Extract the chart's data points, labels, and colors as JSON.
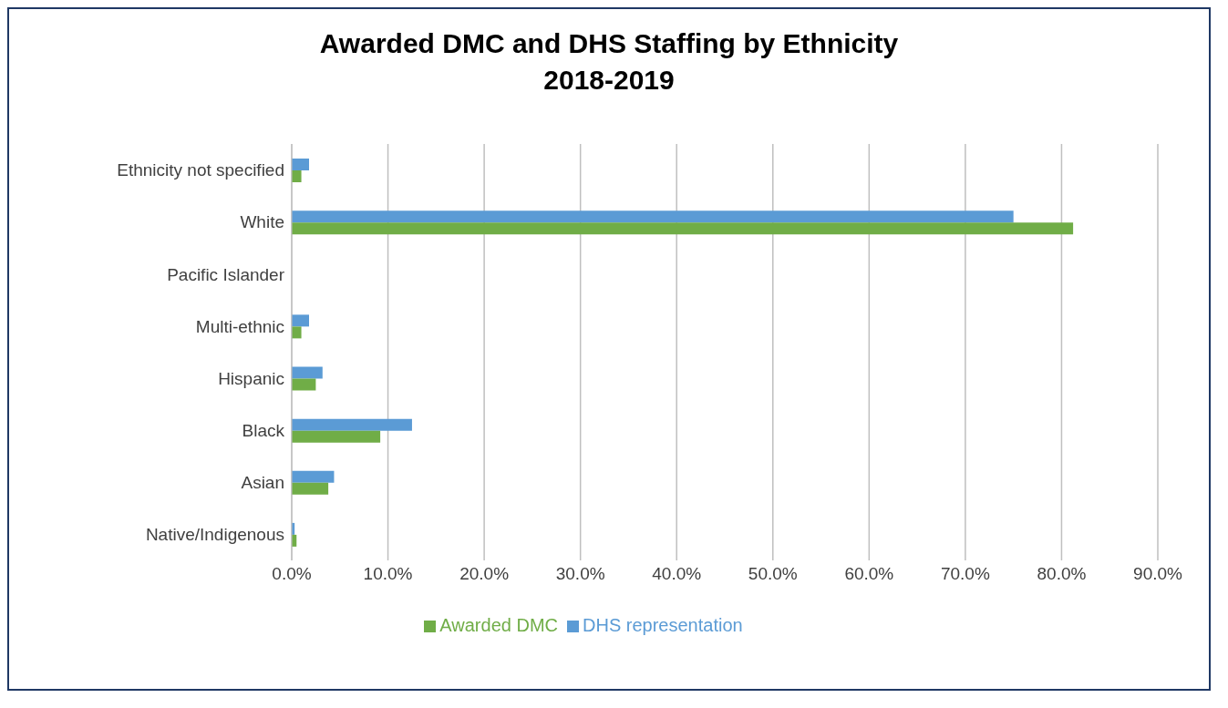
{
  "chart_data": {
    "type": "bar",
    "orientation": "horizontal",
    "title": "Awarded DMC and DHS Staffing by Ethnicity",
    "subtitle": "2018-2019",
    "categories": [
      "Ethnicity not specified",
      "White",
      "Pacific Islander",
      "Multi-ethnic",
      "Hispanic",
      "Black",
      "Asian",
      "Native/Indigenous"
    ],
    "series": [
      {
        "name": "DHS representation",
        "color": "#5b9bd5",
        "values": [
          1.8,
          75.0,
          0,
          1.8,
          3.2,
          12.5,
          4.4,
          0.3
        ]
      },
      {
        "name": "Awarded DMC",
        "color": "#70ad47",
        "values": [
          1.0,
          81.2,
          0,
          1.0,
          2.5,
          9.2,
          3.8,
          0.5
        ]
      }
    ],
    "xlim": [
      0,
      90
    ],
    "xticks": [
      {
        "value": 0,
        "label": "0.0%"
      },
      {
        "value": 10,
        "label": "10.0%"
      },
      {
        "value": 20,
        "label": "20.0%"
      },
      {
        "value": 30,
        "label": "30.0%"
      },
      {
        "value": 40,
        "label": "40.0%"
      },
      {
        "value": 50,
        "label": "50.0%"
      },
      {
        "value": 60,
        "label": "60.0%"
      },
      {
        "value": 70,
        "label": "70.0%"
      },
      {
        "value": 80,
        "label": "80.0%"
      },
      {
        "value": 90,
        "label": "90.0%"
      }
    ],
    "grid": "x",
    "legend": "bottom"
  }
}
